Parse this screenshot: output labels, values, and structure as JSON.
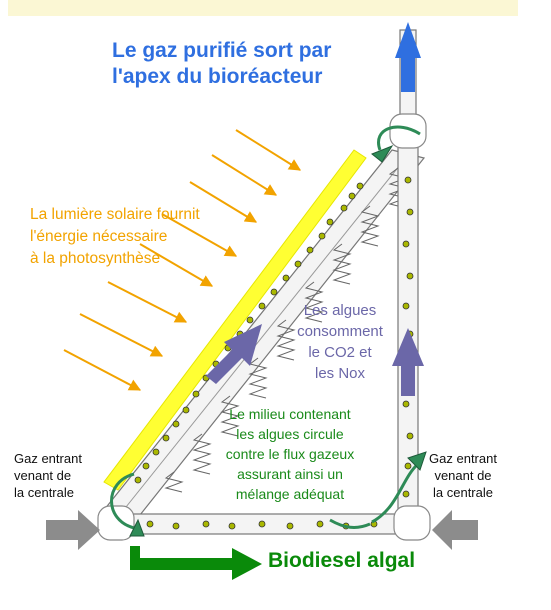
{
  "title": "Le gaz purifié sort par\nl'apex du bioréacteur",
  "sunlight_text": "La lumière solaire fournit\nl'énergie nécessaire\nà la photosynthèse",
  "algae_text": "Les algues\nconsomment\nle CO2 et\nles Nox",
  "medium_text": "Le milieu contenant\nles algues circule\ncontre le flux gazeux\nassurant ainsi un\nmélange adéquat",
  "gas_in_left": "Gaz entrant\nvenant de\nla centrale",
  "gas_in_right": "Gaz entrant\nvenant  de\nla centrale",
  "output_label": "Biodiesel algal",
  "colors": {
    "title_blue": "#2f6fe0",
    "sun_yellow": "#ffff33",
    "sunray_orange": "#f2a300",
    "algae_purple": "#6b67a8",
    "medium_green": "#1a8a1a",
    "output_green": "#0a8a0a",
    "gas_gray": "#8c8c8c"
  }
}
